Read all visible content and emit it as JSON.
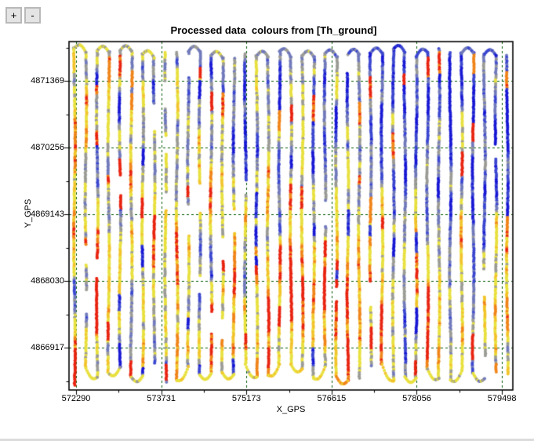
{
  "toolbar": {
    "zoom_in_label": "+",
    "zoom_out_label": "-"
  },
  "window": {
    "bottom_edge_color": "#dcdcdc"
  },
  "chart_data": {
    "type": "scatter",
    "title": "Processed data  colours from [Th_ground]",
    "xlabel": "X_GPS",
    "ylabel": "Y_GPS",
    "x_ticks": [
      572290,
      573731,
      575173,
      576615,
      578056,
      579498
    ],
    "y_ticks": [
      4871369,
      4870256,
      4869143,
      4868030,
      4866917
    ],
    "x_range": [
      572170,
      579682
    ],
    "y_range": [
      4866210,
      4872025
    ],
    "grid": true,
    "grid_color": "#005a00",
    "axis_color": "#000000",
    "marker": "star",
    "n_flight_lines": 39,
    "seed": 7,
    "legend": "colour mapped from Th_ground: blue=low, grey/yellow=mid, orange/red=high",
    "colormap": [
      {
        "upto": 0.18,
        "color": "#1717d4"
      },
      {
        "upto": 0.3,
        "color": "#3a46cf"
      },
      {
        "upto": 0.4,
        "color": "#7079ba"
      },
      {
        "upto": 0.5,
        "color": "#9b9b95"
      },
      {
        "upto": 0.64,
        "color": "#e8e03e"
      },
      {
        "upto": 0.74,
        "color": "#f2c42a"
      },
      {
        "upto": 0.84,
        "color": "#f08418"
      },
      {
        "upto": 1.01,
        "color": "#e8230f"
      }
    ],
    "value_field": {
      "description": "Relative Th_ground intensity sampled on a coarse grid over the plot area, rows listed top-to-bottom (north to south), columns west to east",
      "values": [
        [
          0.52,
          0.5,
          0.52,
          0.48,
          0.45,
          0.4,
          0.42,
          0.4,
          0.36,
          0.3,
          0.28,
          0.25,
          0.28,
          0.3
        ],
        [
          0.45,
          0.5,
          0.46,
          0.42,
          0.35,
          0.32,
          0.34,
          0.38,
          0.34,
          0.25,
          0.35,
          0.18,
          0.2,
          0.15
        ],
        [
          0.5,
          0.54,
          0.5,
          0.45,
          0.36,
          0.3,
          0.34,
          0.4,
          0.36,
          0.3,
          0.45,
          0.22,
          0.16,
          0.15
        ],
        [
          0.54,
          0.5,
          0.54,
          0.5,
          0.4,
          0.32,
          0.36,
          0.42,
          0.38,
          0.34,
          0.35,
          0.26,
          0.2,
          0.2
        ],
        [
          0.5,
          0.55,
          0.58,
          0.54,
          0.48,
          0.4,
          0.44,
          0.48,
          0.45,
          0.4,
          0.36,
          0.3,
          0.28,
          0.26
        ],
        [
          0.55,
          0.58,
          0.55,
          0.58,
          0.54,
          0.5,
          0.55,
          0.6,
          0.6,
          0.65,
          0.45,
          0.4,
          0.34,
          0.3
        ],
        [
          0.58,
          0.62,
          0.64,
          0.6,
          0.55,
          0.6,
          0.65,
          0.74,
          0.7,
          0.78,
          0.55,
          0.48,
          0.44,
          0.4
        ],
        [
          0.58,
          0.68,
          0.6,
          0.64,
          0.6,
          0.64,
          0.7,
          0.84,
          0.8,
          0.82,
          0.6,
          0.54,
          0.48,
          0.45
        ],
        [
          0.55,
          0.6,
          0.56,
          0.6,
          0.64,
          0.6,
          0.66,
          0.78,
          0.74,
          0.68,
          0.58,
          0.5,
          0.46,
          0.48
        ],
        [
          0.58,
          0.55,
          0.6,
          0.55,
          0.6,
          0.56,
          0.6,
          0.66,
          0.8,
          0.74,
          0.56,
          0.5,
          0.45,
          0.5
        ],
        [
          0.55,
          0.58,
          0.55,
          0.58,
          0.55,
          0.58,
          0.56,
          0.6,
          0.7,
          0.66,
          0.62,
          0.55,
          0.5,
          0.52
        ]
      ]
    }
  }
}
